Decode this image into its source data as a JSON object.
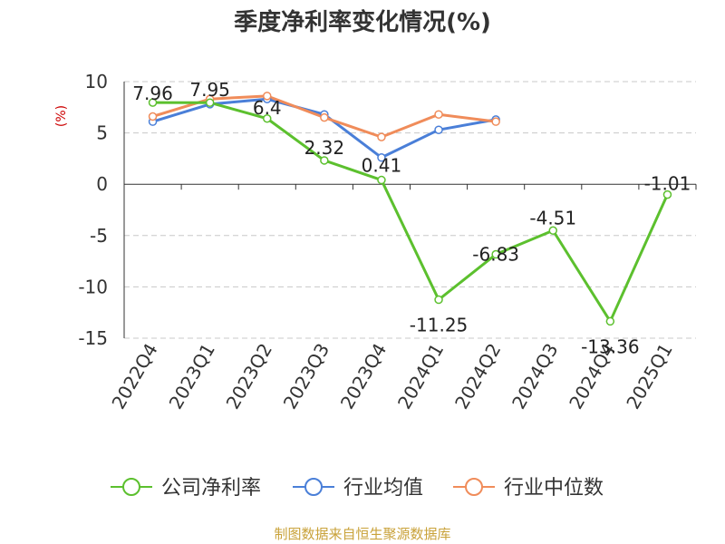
{
  "chart_data": {
    "type": "line",
    "title": "季度净利率变化情况(%)",
    "ylabel": "(%)",
    "xlabel": "",
    "categories": [
      "2022Q4",
      "2023Q1",
      "2023Q2",
      "2023Q3",
      "2023Q4",
      "2024Q1",
      "2024Q2",
      "2024Q3",
      "2024Q4",
      "2025Q1"
    ],
    "yticks": [
      10,
      5,
      0,
      -5,
      -10,
      -15
    ],
    "ylim": [
      -15,
      10
    ],
    "grid": true,
    "legend_position": "bottom",
    "series": [
      {
        "name": "公司净利率",
        "color": "#5cc02e",
        "values": [
          7.96,
          7.95,
          6.4,
          2.32,
          0.41,
          -11.25,
          -6.83,
          -4.51,
          -13.36,
          -1.01
        ],
        "labels": [
          "7.96",
          "7.95",
          "6.4",
          "2.32",
          "0.41",
          "-11.25",
          "-6.83",
          "-4.51",
          "-13.36",
          "-1.01"
        ]
      },
      {
        "name": "行业均值",
        "color": "#4a7fd8",
        "values": [
          6.1,
          7.8,
          8.3,
          6.8,
          2.6,
          5.3,
          6.3,
          null,
          null,
          null
        ]
      },
      {
        "name": "行业中位数",
        "color": "#f08c5a",
        "values": [
          6.6,
          8.3,
          8.6,
          6.5,
          4.6,
          6.8,
          6.1,
          null,
          null,
          null
        ]
      }
    ]
  },
  "source": "制图数据来自恒生聚源数据库"
}
